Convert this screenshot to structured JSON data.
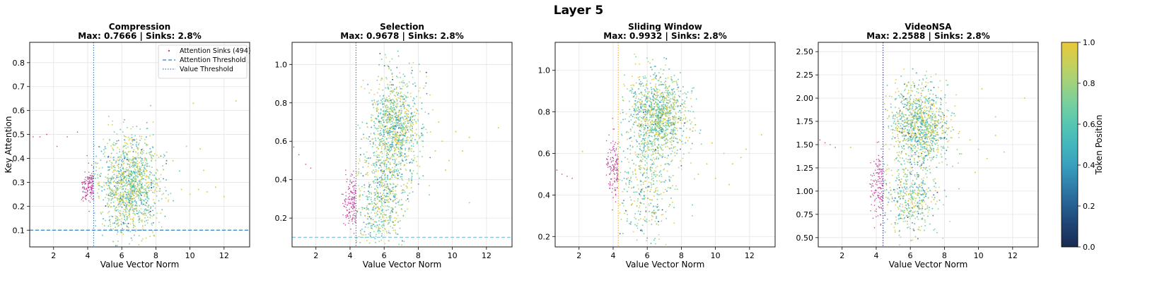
{
  "figure": {
    "title": "Layer 5"
  },
  "colors": {
    "sink": "#c0409a",
    "attention_threshold_default": "#3b7bbf",
    "attention_threshold_selection": "#7ec8e3",
    "value_threshold_default": "#3b7bbf",
    "value_threshold_sliding": "#f0b030",
    "value_threshold_videonsa": "#3a3f7a",
    "colormap": [
      "#1a2a50",
      "#1f4c80",
      "#2f7aa8",
      "#3aa9c2",
      "#4cc4b8",
      "#7cd09c",
      "#b8d46a",
      "#e9c836"
    ]
  },
  "colorbar": {
    "label": "Token Position",
    "range": [
      0.0,
      1.0
    ],
    "ticks": [
      "0.0",
      "0.2",
      "0.4",
      "0.6",
      "0.8",
      "1.0"
    ]
  },
  "chart_data": [
    {
      "type": "scatter",
      "title": "Compression",
      "subtitle": "Max: 0.7666 | Sinks: 2.8%",
      "xlabel": "Value Vector Norm",
      "ylabel": "Key Attention",
      "xlim": [
        0.6,
        13.5
      ],
      "ylim": [
        0.03,
        0.885
      ],
      "xticks": [
        "2",
        "4",
        "6",
        "8",
        "10",
        "12"
      ],
      "yticks": [
        "0.1",
        "0.2",
        "0.3",
        "0.4",
        "0.5",
        "0.6",
        "0.7",
        "0.8"
      ],
      "grid": true,
      "attention_threshold": 0.1,
      "value_threshold": 4.35,
      "legend": {
        "placement": "upper-right",
        "entries": [
          "Attention Sinks (494)",
          "Attention Threshold",
          "Value Threshold"
        ]
      },
      "clusters": [
        {
          "cx": 6.5,
          "cy": 0.29,
          "sx": 0.85,
          "sy": 0.1,
          "n": 1300
        }
      ],
      "sink_region": {
        "x": [
          3.6,
          4.35
        ],
        "y": [
          0.2,
          0.37
        ],
        "n": 140
      },
      "outliers_sink": [
        [
          0.8,
          0.49
        ],
        [
          1.2,
          0.49
        ],
        [
          1.6,
          0.5
        ],
        [
          2.2,
          0.45
        ],
        [
          2.8,
          0.49
        ],
        [
          3.4,
          0.51
        ]
      ],
      "outliers_yellow": [
        [
          9.5,
          0.27
        ],
        [
          10.0,
          0.25
        ],
        [
          10.5,
          0.27
        ],
        [
          11.0,
          0.26
        ],
        [
          11.5,
          0.28
        ],
        [
          12.0,
          0.24
        ],
        [
          10.8,
          0.35
        ],
        [
          9.8,
          0.45
        ],
        [
          10.2,
          0.63
        ],
        [
          12.7,
          0.64
        ],
        [
          9.0,
          0.39
        ],
        [
          10.6,
          0.44
        ]
      ]
    },
    {
      "type": "scatter",
      "title": "Selection",
      "subtitle": "Max: 0.9678 | Sinks: 2.8%",
      "xlabel": "Value Vector Norm",
      "xlim": [
        0.6,
        13.5
      ],
      "ylim": [
        0.05,
        1.115
      ],
      "xticks": [
        "2",
        "4",
        "6",
        "8",
        "10",
        "12"
      ],
      "yticks": [
        "0.2",
        "0.4",
        "0.6",
        "0.8",
        "1.0"
      ],
      "grid": true,
      "attention_threshold": 0.1,
      "value_threshold": 4.35,
      "clusters": [
        {
          "cx": 6.6,
          "cy": 0.66,
          "sx": 0.75,
          "sy": 0.14,
          "n": 1100
        },
        {
          "cx": 5.8,
          "cy": 0.28,
          "sx": 0.8,
          "sy": 0.12,
          "n": 500
        }
      ],
      "sink_region": {
        "x": [
          3.5,
          4.35
        ],
        "y": [
          0.15,
          0.42
        ],
        "n": 140
      },
      "outliers_sink": [
        [
          0.7,
          0.57
        ],
        [
          1.0,
          0.53
        ],
        [
          1.4,
          0.48
        ],
        [
          1.7,
          0.46
        ]
      ],
      "outliers_yellow": [
        [
          9.0,
          0.55
        ],
        [
          9.4,
          0.6
        ],
        [
          9.8,
          0.5
        ],
        [
          10.2,
          0.65
        ],
        [
          10.6,
          0.55
        ],
        [
          11.0,
          0.62
        ],
        [
          9.6,
          0.45
        ],
        [
          12.7,
          0.67
        ],
        [
          11.0,
          0.28
        ],
        [
          9.2,
          0.7
        ]
      ]
    },
    {
      "type": "scatter",
      "title": "Sliding Window",
      "subtitle": "Max: 0.9932 | Sinks: 2.8%",
      "xlabel": "Value Vector Norm",
      "xlim": [
        0.6,
        13.5
      ],
      "ylim": [
        0.15,
        1.135
      ],
      "xticks": [
        "2",
        "4",
        "6",
        "8",
        "10",
        "12"
      ],
      "yticks": [
        "0.2",
        "0.4",
        "0.6",
        "0.8",
        "1.0"
      ],
      "grid": true,
      "value_threshold": 4.3,
      "clusters": [
        {
          "cx": 6.6,
          "cy": 0.78,
          "sx": 0.85,
          "sy": 0.1,
          "n": 1200
        },
        {
          "cx": 6.0,
          "cy": 0.42,
          "sx": 0.8,
          "sy": 0.12,
          "n": 350
        }
      ],
      "sink_region": {
        "x": [
          3.6,
          4.3
        ],
        "y": [
          0.38,
          0.7
        ],
        "n": 140
      },
      "outliers_sink": [
        [
          0.7,
          0.52
        ],
        [
          1.0,
          0.5
        ],
        [
          1.3,
          0.49
        ],
        [
          1.6,
          0.48
        ]
      ],
      "outliers_yellow": [
        [
          9.0,
          0.5
        ],
        [
          9.5,
          0.55
        ],
        [
          10.0,
          0.48
        ],
        [
          10.5,
          0.6
        ],
        [
          10.8,
          0.45
        ],
        [
          11.0,
          0.55
        ],
        [
          11.5,
          0.58
        ],
        [
          9.8,
          0.65
        ],
        [
          12.7,
          0.69
        ],
        [
          11.8,
          0.62
        ],
        [
          2.2,
          0.61
        ]
      ]
    },
    {
      "type": "scatter",
      "title": "VideoNSA",
      "subtitle": "Max: 2.2588 | Sinks: 2.8%",
      "xlabel": "Value Vector Norm",
      "xlim": [
        0.6,
        13.5
      ],
      "ylim": [
        0.4,
        2.6
      ],
      "xticks": [
        "2",
        "4",
        "6",
        "8",
        "10",
        "12"
      ],
      "yticks": [
        "0.50",
        "0.75",
        "1.00",
        "1.25",
        "1.50",
        "1.75",
        "2.00",
        "2.25",
        "2.50"
      ],
      "grid": true,
      "value_threshold": 4.4,
      "clusters": [
        {
          "cx": 6.6,
          "cy": 1.7,
          "sx": 0.8,
          "sy": 0.22,
          "n": 1100
        },
        {
          "cx": 6.0,
          "cy": 0.95,
          "sx": 0.8,
          "sy": 0.22,
          "n": 450
        }
      ],
      "sink_region": {
        "x": [
          3.6,
          4.4
        ],
        "y": [
          0.6,
          1.5
        ],
        "n": 140
      },
      "outliers_sink": [
        [
          0.7,
          1.55
        ],
        [
          1.0,
          1.52
        ],
        [
          1.3,
          1.5
        ],
        [
          1.6,
          1.47
        ]
      ],
      "outliers_yellow": [
        [
          9.0,
          1.4
        ],
        [
          9.5,
          1.55
        ],
        [
          10.0,
          1.45
        ],
        [
          10.5,
          1.35
        ],
        [
          11.0,
          1.6
        ],
        [
          11.5,
          1.42
        ],
        [
          9.8,
          1.2
        ],
        [
          10.2,
          2.1
        ],
        [
          12.7,
          2.0
        ],
        [
          11.0,
          1.8
        ],
        [
          2.5,
          1.47
        ]
      ]
    }
  ]
}
